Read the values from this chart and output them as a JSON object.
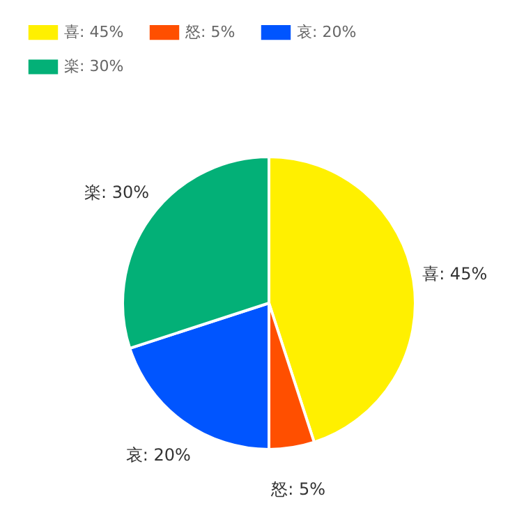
{
  "chart_data": {
    "type": "pie",
    "categories": [
      "喜",
      "怒",
      "哀",
      "楽"
    ],
    "values": [
      45,
      5,
      20,
      30
    ],
    "value_labels": [
      "45%",
      "5%",
      "20%",
      "30%"
    ],
    "colors": [
      "#fff000",
      "#ff4f00",
      "#0055ff",
      "#03b077"
    ],
    "legend": "top left"
  }
}
